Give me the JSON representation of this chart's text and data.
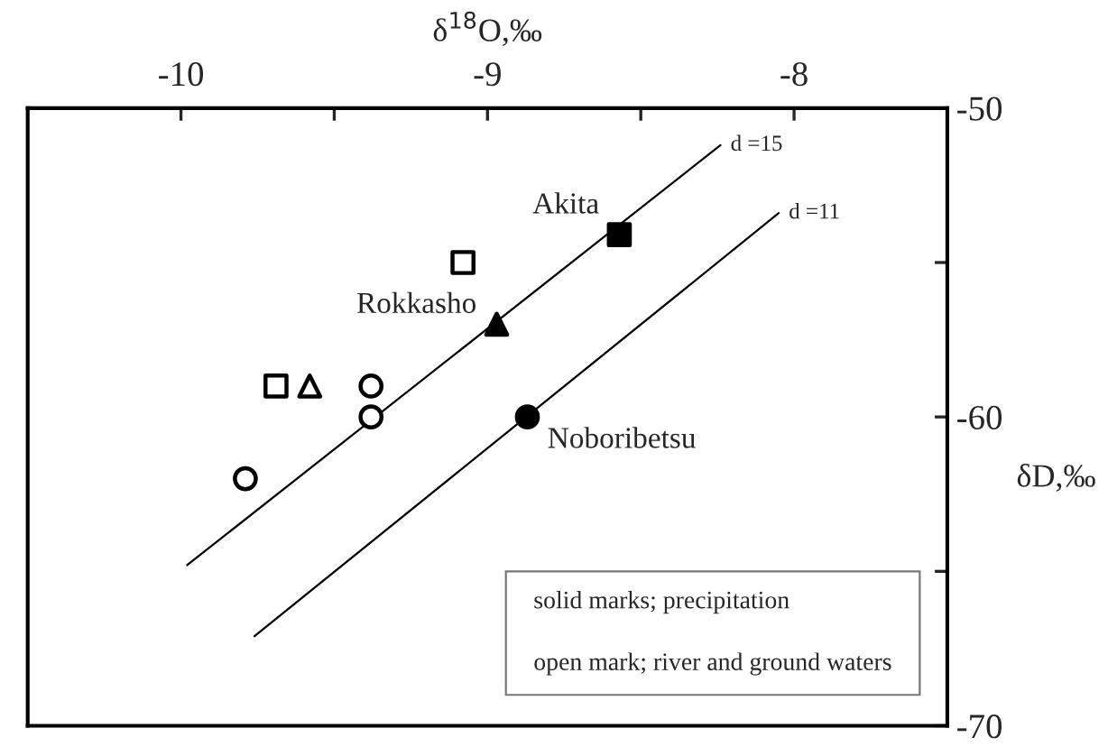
{
  "chart_data": {
    "type": "scatter",
    "xlabel": "δ$^{18}$O,‰",
    "ylabel": "δD,‰",
    "xlim": [
      -10.5,
      -7.5
    ],
    "ylim": [
      -70,
      -50
    ],
    "xticks": [
      -10,
      {
        "value": -9.5,
        "label": null
      },
      -9,
      {
        "value": -8.5,
        "label": null
      },
      -8
    ],
    "yticks": [
      -50,
      {
        "value": -55,
        "label": null
      },
      -60,
      {
        "value": -65,
        "label": null
      },
      -70
    ],
    "grid": false,
    "legend": false,
    "series": [
      {
        "marker": "square",
        "color": "#000000",
        "colors": [
          "#000000"
        ],
        "x": [
          -8.57
        ],
        "values": [
          -54.1
        ]
      },
      {
        "marker": "triangle",
        "color": "#000000",
        "colors": [
          "#000000"
        ],
        "x": [
          -8.97
        ],
        "values": [
          -57.0
        ]
      },
      {
        "marker": "circle",
        "color": "#000000",
        "colors": [
          "#000000"
        ],
        "x": [
          -8.87
        ],
        "values": [
          -60.0
        ]
      },
      {
        "marker": "square",
        "color": "#000000",
        "colors": [
          "#ffffff",
          "#ffffff"
        ],
        "x": [
          -9.08,
          -9.69
        ],
        "values": [
          -55.0,
          -59.0
        ]
      },
      {
        "marker": "triangle",
        "color": "#000000",
        "colors": [
          "#ffffff"
        ],
        "x": [
          -9.58
        ],
        "values": [
          -59.0
        ]
      },
      {
        "marker": "circle",
        "color": "#000000",
        "colors": [
          "#ffffff",
          "#ffffff",
          "#ffffff"
        ],
        "x": [
          -9.38,
          -9.38,
          -9.79
        ],
        "values": [
          -59.0,
          -60.0,
          -62.0
        ]
      },
      {
        "type": "line",
        "color": "#000000",
        "line_style": "solid",
        "x": [
          -9.98,
          -8.24
        ],
        "values": [
          -64.8,
          -51.2
        ]
      },
      {
        "type": "line",
        "color": "#000000",
        "line_style": "solid",
        "x": [
          -9.76,
          -8.05
        ],
        "values": [
          -67.1,
          -53.4
        ]
      }
    ],
    "annotations": [
      {
        "text": "Akita",
        "x": -8.57,
        "y": -54.1
      },
      {
        "text": "Rokkasho",
        "x": -8.97,
        "y": -57.0
      },
      {
        "text": "Noboribetsu",
        "x": -8.87,
        "y": -60.0
      },
      {
        "text": "d =15",
        "x": -8.24,
        "y": -51.2
      },
      {
        "text": "d =11",
        "x": -8.05,
        "y": -53.4
      },
      "solid marks; precipitation",
      "open mark; river and ground waters"
    ]
  }
}
